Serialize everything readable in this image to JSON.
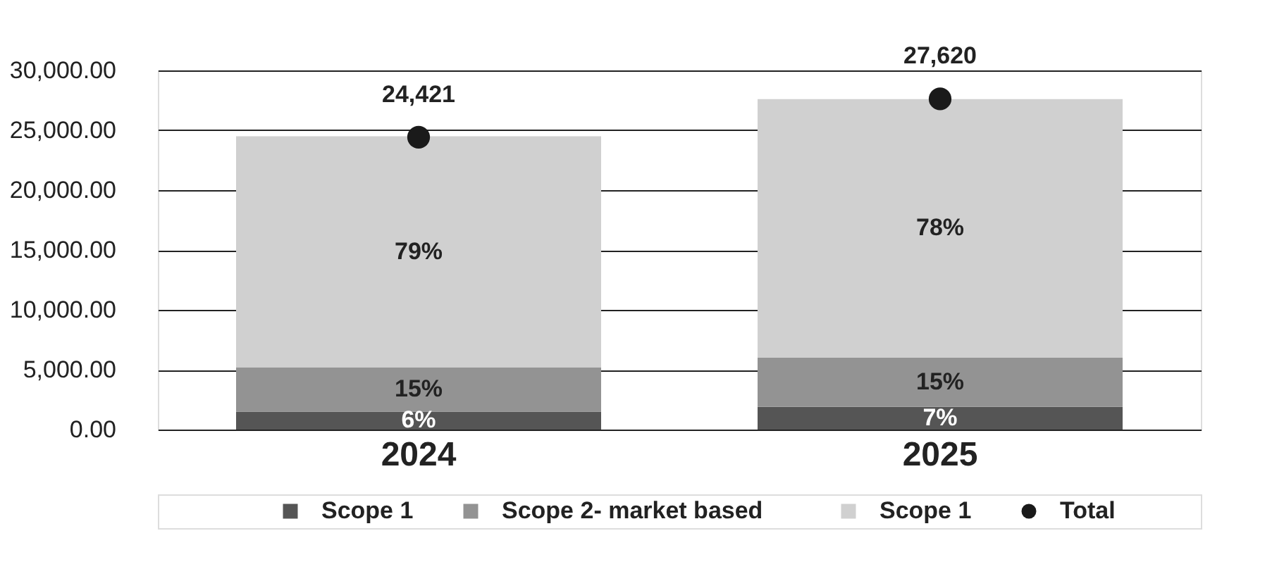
{
  "chart_data": {
    "type": "bar",
    "stacked": true,
    "categories": [
      "2024",
      "2025"
    ],
    "series": [
      {
        "name": "Scope 1",
        "color": "#555555",
        "values": [
          1500,
          1900
        ]
      },
      {
        "name": "Scope 2- market based",
        "color": "#939393",
        "values": [
          3700,
          4100
        ]
      },
      {
        "name": "Scope 1",
        "color": "#d0d0d0",
        "values": [
          19300,
          21600
        ]
      },
      {
        "name": "Total",
        "type": "scatter",
        "color": "#1a1a1a",
        "values": [
          24421,
          27620
        ],
        "value_labels": [
          "24,421",
          "27,620"
        ]
      }
    ],
    "annotations": [
      "6%",
      "7%",
      "15%",
      "15%",
      "79%",
      "78%"
    ],
    "ylim": [
      0,
      30000
    ],
    "yticks": [
      {
        "value": 0,
        "label": "0.00"
      },
      {
        "value": 5000,
        "label": "5,000.00"
      },
      {
        "value": 10000,
        "label": "10,000.00"
      },
      {
        "value": 15000,
        "label": "15,000.00"
      },
      {
        "value": 20000,
        "label": "20,000.00"
      },
      {
        "value": 25000,
        "label": "25,000.00"
      },
      {
        "value": 30000,
        "label": "30,000.00"
      }
    ],
    "grid": "y",
    "legend": "bottom",
    "marker": "circle"
  }
}
